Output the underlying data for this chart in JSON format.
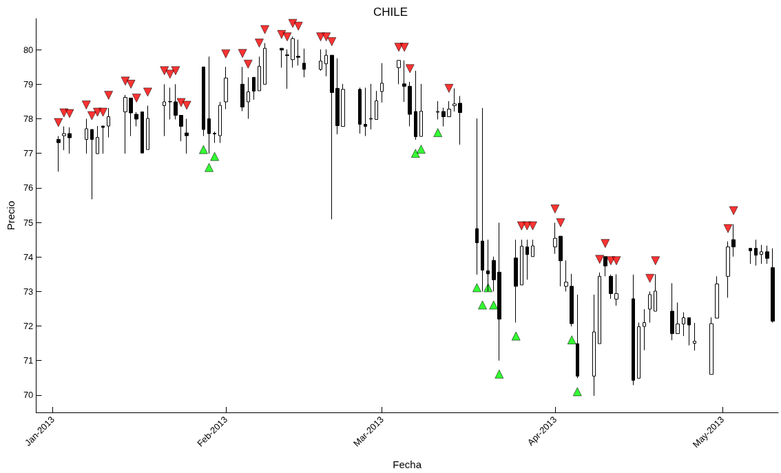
{
  "chart_data": {
    "type": "candlestick",
    "title": "CHILE",
    "xlabel": "Fecha",
    "ylabel": "Precio",
    "x": [
      "2013-01-02",
      "2013-01-03",
      "2013-01-04",
      "2013-01-07",
      "2013-01-08",
      "2013-01-09",
      "2013-01-10",
      "2013-01-11",
      "2013-01-14",
      "2013-01-15",
      "2013-01-16",
      "2013-01-17",
      "2013-01-18",
      "2013-01-21",
      "2013-01-22",
      "2013-01-23",
      "2013-01-24",
      "2013-01-25",
      "2013-01-28",
      "2013-01-29",
      "2013-01-30",
      "2013-01-31",
      "2013-02-01",
      "2013-02-04",
      "2013-02-05",
      "2013-02-06",
      "2013-02-07",
      "2013-02-08",
      "2013-02-11",
      "2013-02-12",
      "2013-02-13",
      "2013-02-14",
      "2013-02-15",
      "2013-02-18",
      "2013-02-19",
      "2013-02-20",
      "2013-02-21",
      "2013-02-22",
      "2013-02-25",
      "2013-02-26",
      "2013-02-27",
      "2013-02-28",
      "2013-03-01",
      "2013-03-04",
      "2013-03-05",
      "2013-03-06",
      "2013-03-07",
      "2013-03-08",
      "2013-03-11",
      "2013-03-12",
      "2013-03-13",
      "2013-03-14",
      "2013-03-15",
      "2013-03-18",
      "2013-03-19",
      "2013-03-20",
      "2013-03-21",
      "2013-03-22",
      "2013-03-25",
      "2013-03-26",
      "2013-03-27",
      "2013-03-28",
      "2013-04-01",
      "2013-04-02",
      "2013-04-03",
      "2013-04-04",
      "2013-04-05",
      "2013-04-08",
      "2013-04-09",
      "2013-04-10",
      "2013-04-11",
      "2013-04-12",
      "2013-04-15",
      "2013-04-16",
      "2013-04-17",
      "2013-04-18",
      "2013-04-19",
      "2013-04-22",
      "2013-04-23",
      "2013-04-24",
      "2013-04-25",
      "2013-04-26",
      "2013-04-29",
      "2013-04-30",
      "2013-05-02",
      "2013-05-03",
      "2013-05-06",
      "2013-05-07",
      "2013-05-08",
      "2013-05-09",
      "2013-05-10"
    ],
    "ohlc": [
      [
        77.4,
        77.5,
        76.47,
        77.31
      ],
      [
        77.51,
        77.78,
        77.09,
        77.57
      ],
      [
        77.57,
        77.75,
        76.99,
        77.45
      ],
      [
        77.4,
        78.0,
        76.99,
        77.71
      ],
      [
        77.69,
        77.69,
        75.67,
        77.4
      ],
      [
        76.99,
        77.79,
        76.99,
        77.46
      ],
      [
        77.79,
        77.79,
        76.99,
        77.75
      ],
      [
        77.79,
        78.31,
        77.46,
        78.06
      ],
      [
        78.2,
        78.69,
        76.99,
        78.62
      ],
      [
        78.6,
        78.6,
        77.5,
        78.17
      ],
      [
        78.13,
        78.19,
        77.78,
        77.99
      ],
      [
        78.2,
        78.2,
        77.0,
        77.01
      ],
      [
        77.11,
        78.38,
        77.11,
        78.01
      ],
      [
        78.38,
        79.0,
        77.5,
        78.49
      ],
      [
        78.49,
        78.9,
        77.98,
        78.5
      ],
      [
        78.49,
        79.0,
        77.98,
        78.1
      ],
      [
        78.1,
        78.1,
        77.35,
        77.78
      ],
      [
        77.59,
        78.0,
        76.99,
        77.51
      ],
      [
        79.5,
        79.5,
        77.5,
        77.69
      ],
      [
        78.0,
        79.8,
        76.99,
        77.57
      ],
      [
        77.58,
        77.63,
        77.3,
        77.56
      ],
      [
        77.51,
        78.49,
        77.3,
        78.39
      ],
      [
        78.49,
        79.5,
        78.28,
        79.18
      ],
      [
        79.0,
        79.5,
        78.22,
        78.34
      ],
      [
        78.49,
        79.2,
        78.0,
        78.78
      ],
      [
        79.2,
        79.2,
        78.55,
        78.8
      ],
      [
        78.81,
        79.8,
        78.81,
        79.52
      ],
      [
        79.0,
        80.19,
        79.0,
        80.04
      ],
      [
        80.04,
        80.04,
        79.48,
        79.99
      ],
      [
        79.85,
        80.01,
        78.87,
        79.83
      ],
      [
        79.71,
        80.38,
        79.48,
        80.32
      ],
      [
        79.81,
        80.29,
        79.54,
        79.78
      ],
      [
        79.61,
        80.03,
        79.2,
        79.43
      ],
      [
        79.43,
        80.01,
        79.39,
        79.67
      ],
      [
        79.59,
        80.01,
        79.23,
        79.84
      ],
      [
        79.84,
        79.84,
        75.09,
        78.76
      ],
      [
        78.88,
        79.75,
        77.55,
        77.8
      ],
      [
        77.78,
        79.01,
        77.78,
        78.85
      ],
      [
        78.85,
        78.9,
        77.57,
        77.84
      ],
      [
        77.84,
        78.9,
        77.5,
        77.78
      ],
      [
        77.99,
        79.01,
        77.69,
        78.01
      ],
      [
        77.98,
        78.81,
        77.98,
        78.52
      ],
      [
        78.79,
        79.61,
        78.47,
        79.03
      ],
      [
        79.48,
        79.69,
        79.0,
        79.69
      ],
      [
        79.01,
        79.69,
        78.49,
        78.94
      ],
      [
        78.94,
        79.07,
        77.78,
        78.13
      ],
      [
        78.21,
        79.39,
        77.39,
        77.48
      ],
      [
        77.49,
        79.01,
        77.49,
        78.22
      ],
      [
        78.19,
        78.51,
        77.98,
        78.21
      ],
      [
        78.21,
        78.32,
        77.78,
        78.06
      ],
      [
        78.06,
        78.51,
        78.06,
        78.28
      ],
      [
        78.38,
        78.88,
        78.21,
        78.43
      ],
      [
        78.45,
        78.66,
        77.25,
        78.18
      ],
      [
        74.82,
        78.01,
        73.49,
        74.41
      ],
      [
        74.46,
        78.31,
        73.0,
        73.62
      ],
      [
        73.6,
        74.5,
        73.0,
        73.51
      ],
      [
        73.9,
        74.01,
        73.0,
        73.34
      ],
      [
        73.56,
        74.99,
        71.0,
        72.2
      ],
      [
        73.97,
        74.5,
        72.1,
        73.15
      ],
      [
        73.19,
        74.5,
        73.19,
        74.31
      ],
      [
        74.29,
        74.5,
        73.34,
        74.07
      ],
      [
        74.01,
        74.5,
        74.01,
        74.32
      ],
      [
        74.29,
        74.99,
        74.09,
        74.54
      ],
      [
        74.6,
        74.6,
        73.15,
        73.89
      ],
      [
        73.15,
        73.9,
        73.0,
        73.27
      ],
      [
        73.15,
        73.51,
        71.99,
        72.07
      ],
      [
        71.49,
        72.91,
        70.49,
        70.55
      ],
      [
        70.55,
        72.91,
        69.98,
        71.83
      ],
      [
        71.49,
        73.55,
        71.49,
        73.44
      ],
      [
        74.01,
        74.01,
        73.44,
        73.74
      ],
      [
        73.44,
        73.49,
        72.79,
        72.94
      ],
      [
        72.78,
        73.5,
        72.59,
        72.94
      ],
      [
        72.79,
        73.49,
        70.29,
        70.43
      ],
      [
        70.49,
        72.1,
        70.49,
        71.98
      ],
      [
        71.99,
        72.49,
        71.3,
        72.1
      ],
      [
        72.49,
        73.0,
        72.1,
        72.91
      ],
      [
        72.43,
        73.5,
        72.43,
        73.01
      ],
      [
        72.43,
        73.24,
        71.59,
        71.78
      ],
      [
        71.78,
        72.68,
        71.78,
        72.06
      ],
      [
        72.06,
        72.4,
        71.71,
        72.24
      ],
      [
        72.24,
        72.24,
        71.44,
        72.03
      ],
      [
        71.5,
        72.09,
        71.29,
        71.56
      ],
      [
        70.6,
        72.25,
        70.6,
        72.07
      ],
      [
        72.23,
        73.44,
        72.23,
        73.22
      ],
      [
        73.44,
        74.45,
        72.82,
        74.29
      ],
      [
        74.5,
        74.95,
        74.01,
        74.29
      ],
      [
        74.25,
        74.25,
        73.8,
        74.18
      ],
      [
        74.25,
        74.5,
        73.75,
        74.05
      ],
      [
        74.07,
        74.35,
        73.8,
        74.15
      ],
      [
        74.15,
        74.33,
        73.8,
        73.96
      ],
      [
        73.69,
        74.25,
        72.1,
        72.14
      ]
    ],
    "series": [
      {
        "type": "scatter",
        "marker": "triangle-down",
        "color": "#ff0000",
        "x": [
          "2013-01-02",
          "2013-01-03",
          "2013-01-04",
          "2013-01-07",
          "2013-01-08",
          "2013-01-09",
          "2013-01-10",
          "2013-01-11",
          "2013-01-14",
          "2013-01-15",
          "2013-01-16",
          "2013-01-18",
          "2013-01-21",
          "2013-01-22",
          "2013-01-23",
          "2013-01-24",
          "2013-01-25",
          "2013-02-01",
          "2013-02-04",
          "2013-02-05",
          "2013-02-07",
          "2013-02-08",
          "2013-02-11",
          "2013-02-12",
          "2013-02-13",
          "2013-02-14",
          "2013-02-18",
          "2013-02-19",
          "2013-02-20",
          "2013-03-04",
          "2013-03-05",
          "2013-03-06",
          "2013-03-13",
          "2013-03-26",
          "2013-03-27",
          "2013-03-28",
          "2013-04-01",
          "2013-04-02",
          "2013-04-09",
          "2013-04-10",
          "2013-04-11",
          "2013-04-12",
          "2013-04-18",
          "2013-04-19",
          "2013-05-02",
          "2013-05-03"
        ],
        "values": [
          77.89,
          78.17,
          78.15,
          78.4,
          78.09,
          78.19,
          78.19,
          78.68,
          79.09,
          79.0,
          78.6,
          78.77,
          79.39,
          79.29,
          79.39,
          78.47,
          78.39,
          79.88,
          79.89,
          79.58,
          80.19,
          80.58,
          80.44,
          80.37,
          80.76,
          80.68,
          80.37,
          80.37,
          80.23,
          80.07,
          80.07,
          79.45,
          78.88,
          74.9,
          74.9,
          74.9,
          75.39,
          74.99,
          73.93,
          74.39,
          73.89,
          73.89,
          73.38,
          73.89,
          74.82,
          75.34
        ]
      },
      {
        "type": "scatter",
        "marker": "triangle",
        "color": "#00ff00",
        "x": [
          "2013-01-28",
          "2013-01-29",
          "2013-01-30",
          "2013-03-07",
          "2013-03-08",
          "2013-03-11",
          "2013-03-18",
          "2013-03-19",
          "2013-03-20",
          "2013-03-21",
          "2013-03-22",
          "2013-03-25",
          "2013-04-04",
          "2013-04-05"
        ],
        "values": [
          77.11,
          76.59,
          76.91,
          77.0,
          77.12,
          77.6,
          73.11,
          72.61,
          73.11,
          72.61,
          70.61,
          71.71,
          71.6,
          70.1
        ]
      }
    ],
    "xlim": [
      "2012-12-29",
      "2013-05-11"
    ],
    "xticks": [
      {
        "value": "2013-01-01",
        "label": "Jan-2013"
      },
      {
        "value": "2013-02-01",
        "label": "Feb-2013"
      },
      {
        "value": "2013-03-01",
        "label": "Mar-2013"
      },
      {
        "value": "2013-04-01",
        "label": "Apr-2013"
      },
      {
        "value": "2013-05-01",
        "label": "May-2013"
      }
    ],
    "ylim": [
      69.5,
      80.9
    ],
    "yticks": [
      70,
      71,
      72,
      73,
      74,
      75,
      76,
      77,
      78,
      79,
      80
    ],
    "grid": false
  }
}
